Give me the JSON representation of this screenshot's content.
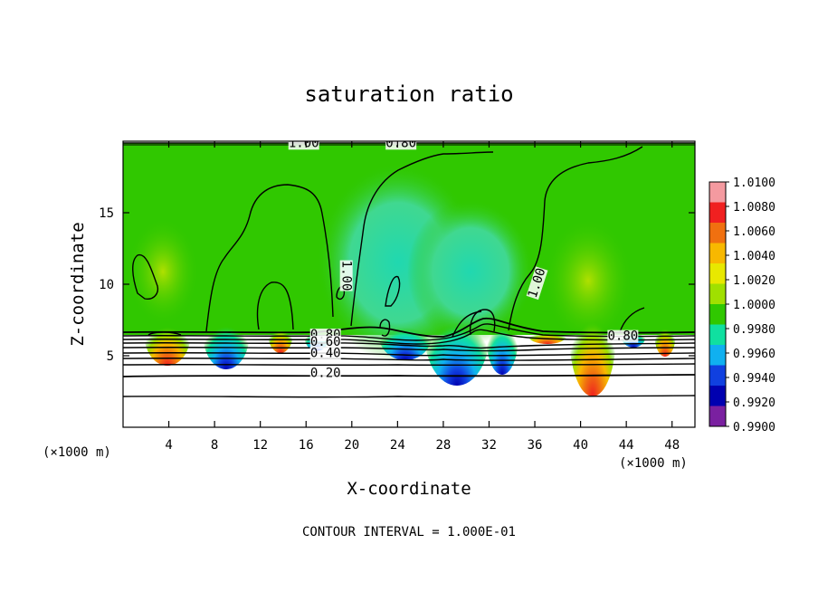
{
  "chart_data": {
    "type": "heatmap",
    "title": "saturation ratio",
    "xlabel": "X-coordinate",
    "ylabel": "Z-coordinate",
    "x_unit": "(×1000 m)",
    "xlim": [
      0,
      50
    ],
    "ylim": [
      0,
      20
    ],
    "xticks": [
      4,
      8,
      12,
      16,
      20,
      24,
      28,
      32,
      36,
      40,
      44,
      48
    ],
    "yticks": [
      5,
      10,
      15
    ],
    "contour_interval_label": "CONTOUR INTERVAL = 1.000E-01",
    "colorbar": {
      "ticks": [
        "1.0100",
        "1.0080",
        "1.0060",
        "1.0040",
        "1.0020",
        "1.0000",
        "0.9980",
        "0.9960",
        "0.9940",
        "0.9920",
        "0.9900"
      ],
      "colors": [
        "#f49aa0",
        "#f02020",
        "#f07010",
        "#f8b800",
        "#e8e800",
        "#a0e000",
        "#30c800",
        "#10e0a0",
        "#10b0f0",
        "#1040e0",
        "#0000b0",
        "#7a20a0"
      ]
    },
    "contour_labels": [
      {
        "text": "1.00",
        "x": 15.8,
        "z": 19.6
      },
      {
        "text": "0.80",
        "x": 24.3,
        "z": 19.6
      },
      {
        "text": "1.00",
        "x": 19.2,
        "z": 10.6
      },
      {
        "text": "1.00",
        "x": 36.5,
        "z": 10.0
      },
      {
        "text": "0.80",
        "x": 43.7,
        "z": 6.1
      },
      {
        "text": "0.80",
        "x": 17.7,
        "z": 6.2
      },
      {
        "text": "0.60",
        "x": 17.7,
        "z": 5.7
      },
      {
        "text": "0.40",
        "x": 17.7,
        "z": 4.9
      },
      {
        "text": "0.20",
        "x": 17.7,
        "z": 3.5
      }
    ]
  }
}
